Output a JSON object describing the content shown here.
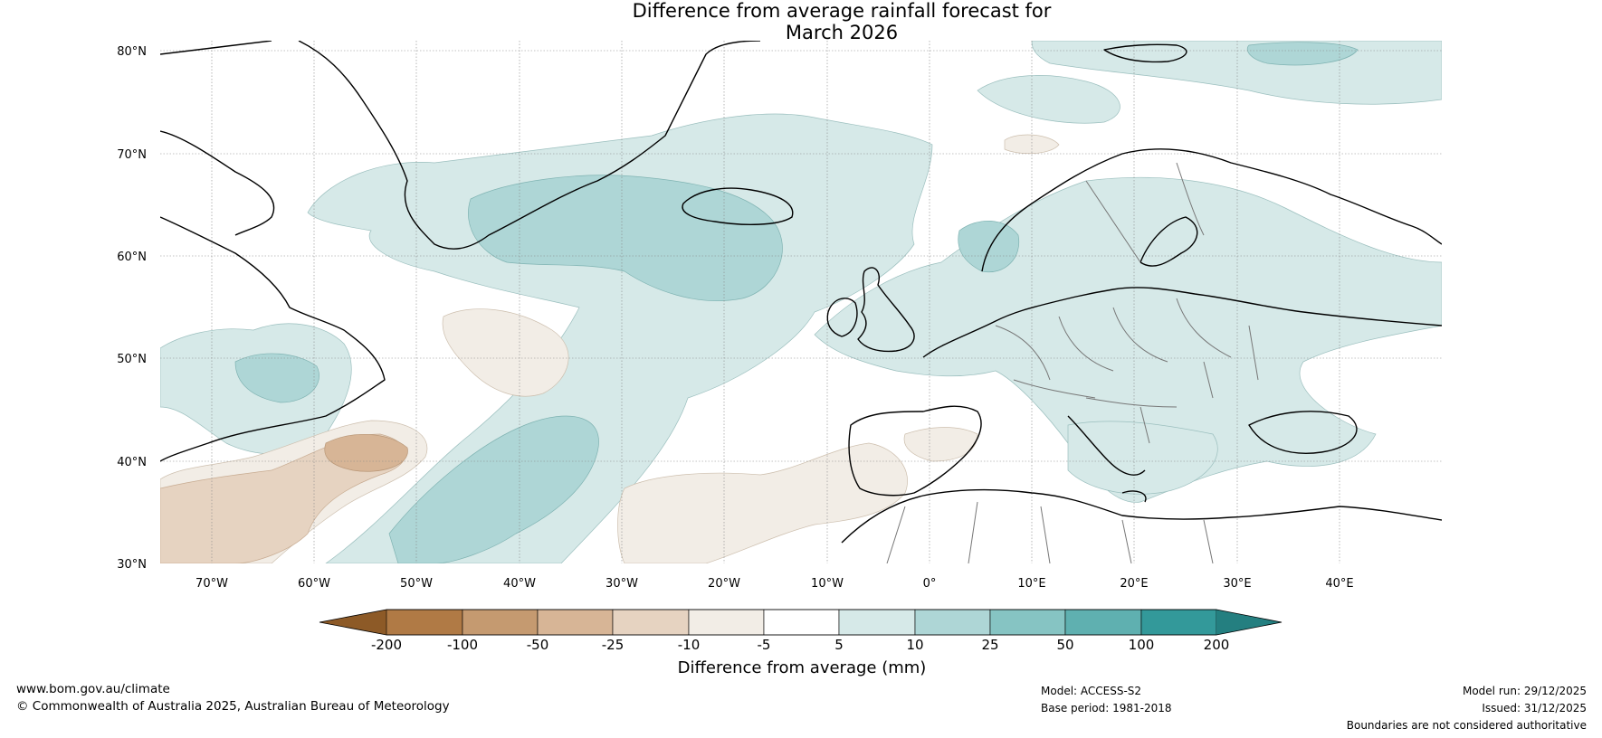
{
  "title": {
    "line1": "Difference from average rainfall forecast for",
    "line2": "March 2026"
  },
  "map": {
    "latitude_labels": [
      "80°N",
      "70°N",
      "60°N",
      "50°N",
      "40°N",
      "30°N"
    ],
    "longitude_labels": [
      "70°W",
      "60°W",
      "50°W",
      "40°W",
      "30°W",
      "20°W",
      "10°W",
      "0°",
      "10°E",
      "20°E",
      "30°E",
      "40°E"
    ],
    "lat_range": [
      30,
      81
    ],
    "lon_range": [
      -75,
      50
    ]
  },
  "colorbar": {
    "tick_labels": [
      "-200",
      "-100",
      "-50",
      "-25",
      "-10",
      "-5",
      "5",
      "10",
      "25",
      "50",
      "100",
      "200"
    ],
    "colors": [
      "#8d5a27",
      "#b07a45",
      "#c59a70",
      "#d7b596",
      "#e6d3c1",
      "#f2ede6",
      "#ffffff",
      "#d6e9e8",
      "#aed6d6",
      "#86c4c3",
      "#5fb0b0",
      "#33999a",
      "#247f80"
    ],
    "label": "Difference from average (mm)"
  },
  "footer": {
    "website": "www.bom.gov.au/climate",
    "copyright": "© Commonwealth of Australia 2025, Australian Bureau of Meteorology",
    "model": "Model: ACCESS-S2",
    "base_period": "Base period: 1981-2018",
    "model_run": "Model run: 29/12/2025",
    "issued": "Issued: 31/12/2025",
    "disclaimer": "Boundaries are not considered authoritative"
  }
}
